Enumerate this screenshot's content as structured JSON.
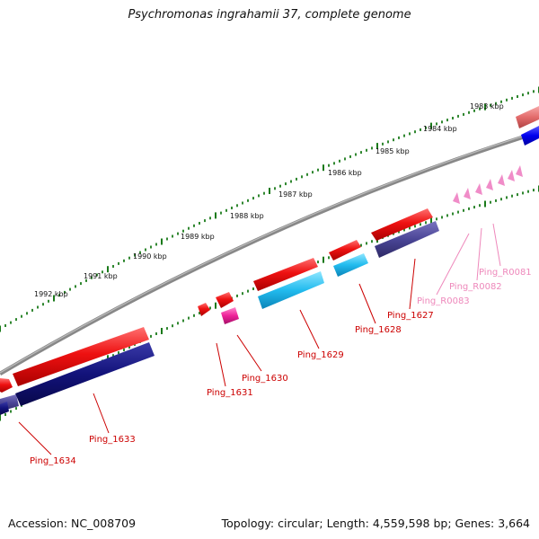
{
  "title": "Psychromonas ingrahamii 37, complete genome",
  "footer": {
    "accession": "Accession: NC_008709",
    "summary": "Topology: circular; Length: 4,559,598 bp; Genes: 3,664"
  },
  "ticks": [
    "1983 kbp",
    "1984 kbp",
    "1985 kbp",
    "1986 kbp",
    "1987 kbp",
    "1988 kbp",
    "1989 kbp",
    "1990 kbp",
    "1991 kbp",
    "1992 kbp"
  ],
  "genes": [
    "Ping_1634",
    "Ping_1633",
    "Ping_1631",
    "Ping_1630",
    "Ping_1629",
    "Ping_1628",
    "Ping_1627",
    "Ping_R0083",
    "Ping_R0082",
    "Ping_R0081"
  ],
  "colors": {
    "backbone": "#808080",
    "tick": "#1a7a1a",
    "cds_forward": "#ee1111",
    "cds_navy": "#12127a",
    "cds_slate": "#4a4596",
    "cds_cyan": "#22bbee",
    "cds_magenta": "#ee2299",
    "rna": "#f08cc8",
    "gene_label": "#cc0000",
    "rna_label": "#ee88bb"
  }
}
